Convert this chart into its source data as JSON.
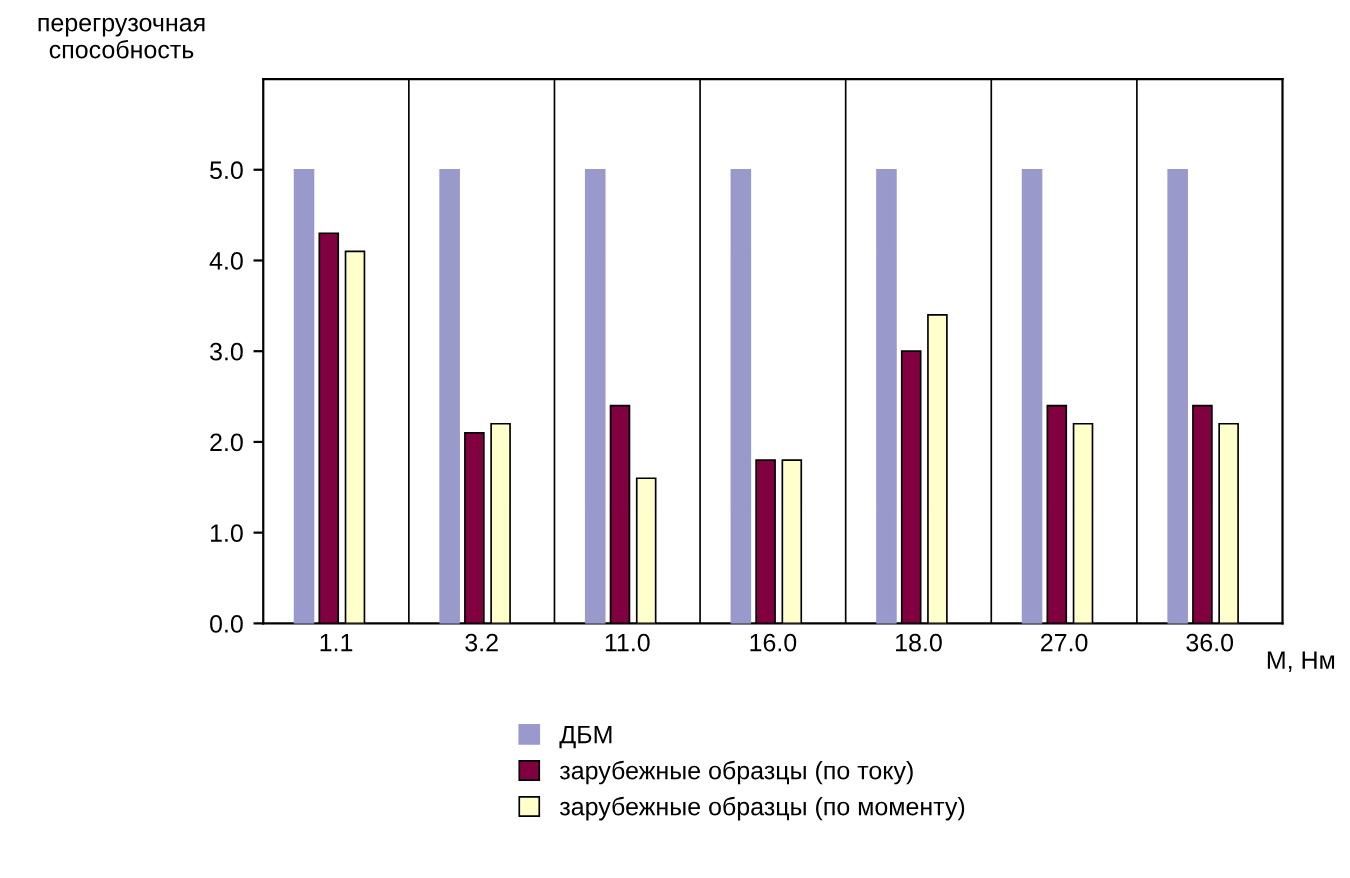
{
  "chart_data": {
    "type": "bar",
    "ylabel": "перегрузочная\nспособность",
    "xlabel": "М, Нм",
    "categories": [
      "1.1",
      "3.2",
      "11.0",
      "16.0",
      "18.0",
      "27.0",
      "36.0"
    ],
    "series": [
      {
        "name": "ДБМ",
        "color": "#9999cc",
        "values": [
          5.0,
          5.0,
          5.0,
          5.0,
          5.0,
          5.0,
          5.0
        ]
      },
      {
        "name": "зарубежные образцы (по току)",
        "color": "#800040",
        "values": [
          4.3,
          2.1,
          2.4,
          1.8,
          3.0,
          2.4,
          2.4
        ]
      },
      {
        "name": "зарубежные образцы (по моменту)",
        "color": "#ffffcc",
        "values": [
          4.1,
          2.2,
          1.6,
          1.8,
          3.4,
          2.2,
          2.2
        ]
      }
    ],
    "ylim": [
      0,
      6
    ],
    "yticks": [
      {
        "value": 0,
        "label": "0.0"
      },
      {
        "value": 1,
        "label": "1.0"
      },
      {
        "value": 2,
        "label": "2.0"
      },
      {
        "value": 3,
        "label": "3.0"
      },
      {
        "value": 4,
        "label": "4.0"
      },
      {
        "value": 5,
        "label": "5.0"
      }
    ],
    "grid": "x",
    "legend": "bottom"
  }
}
